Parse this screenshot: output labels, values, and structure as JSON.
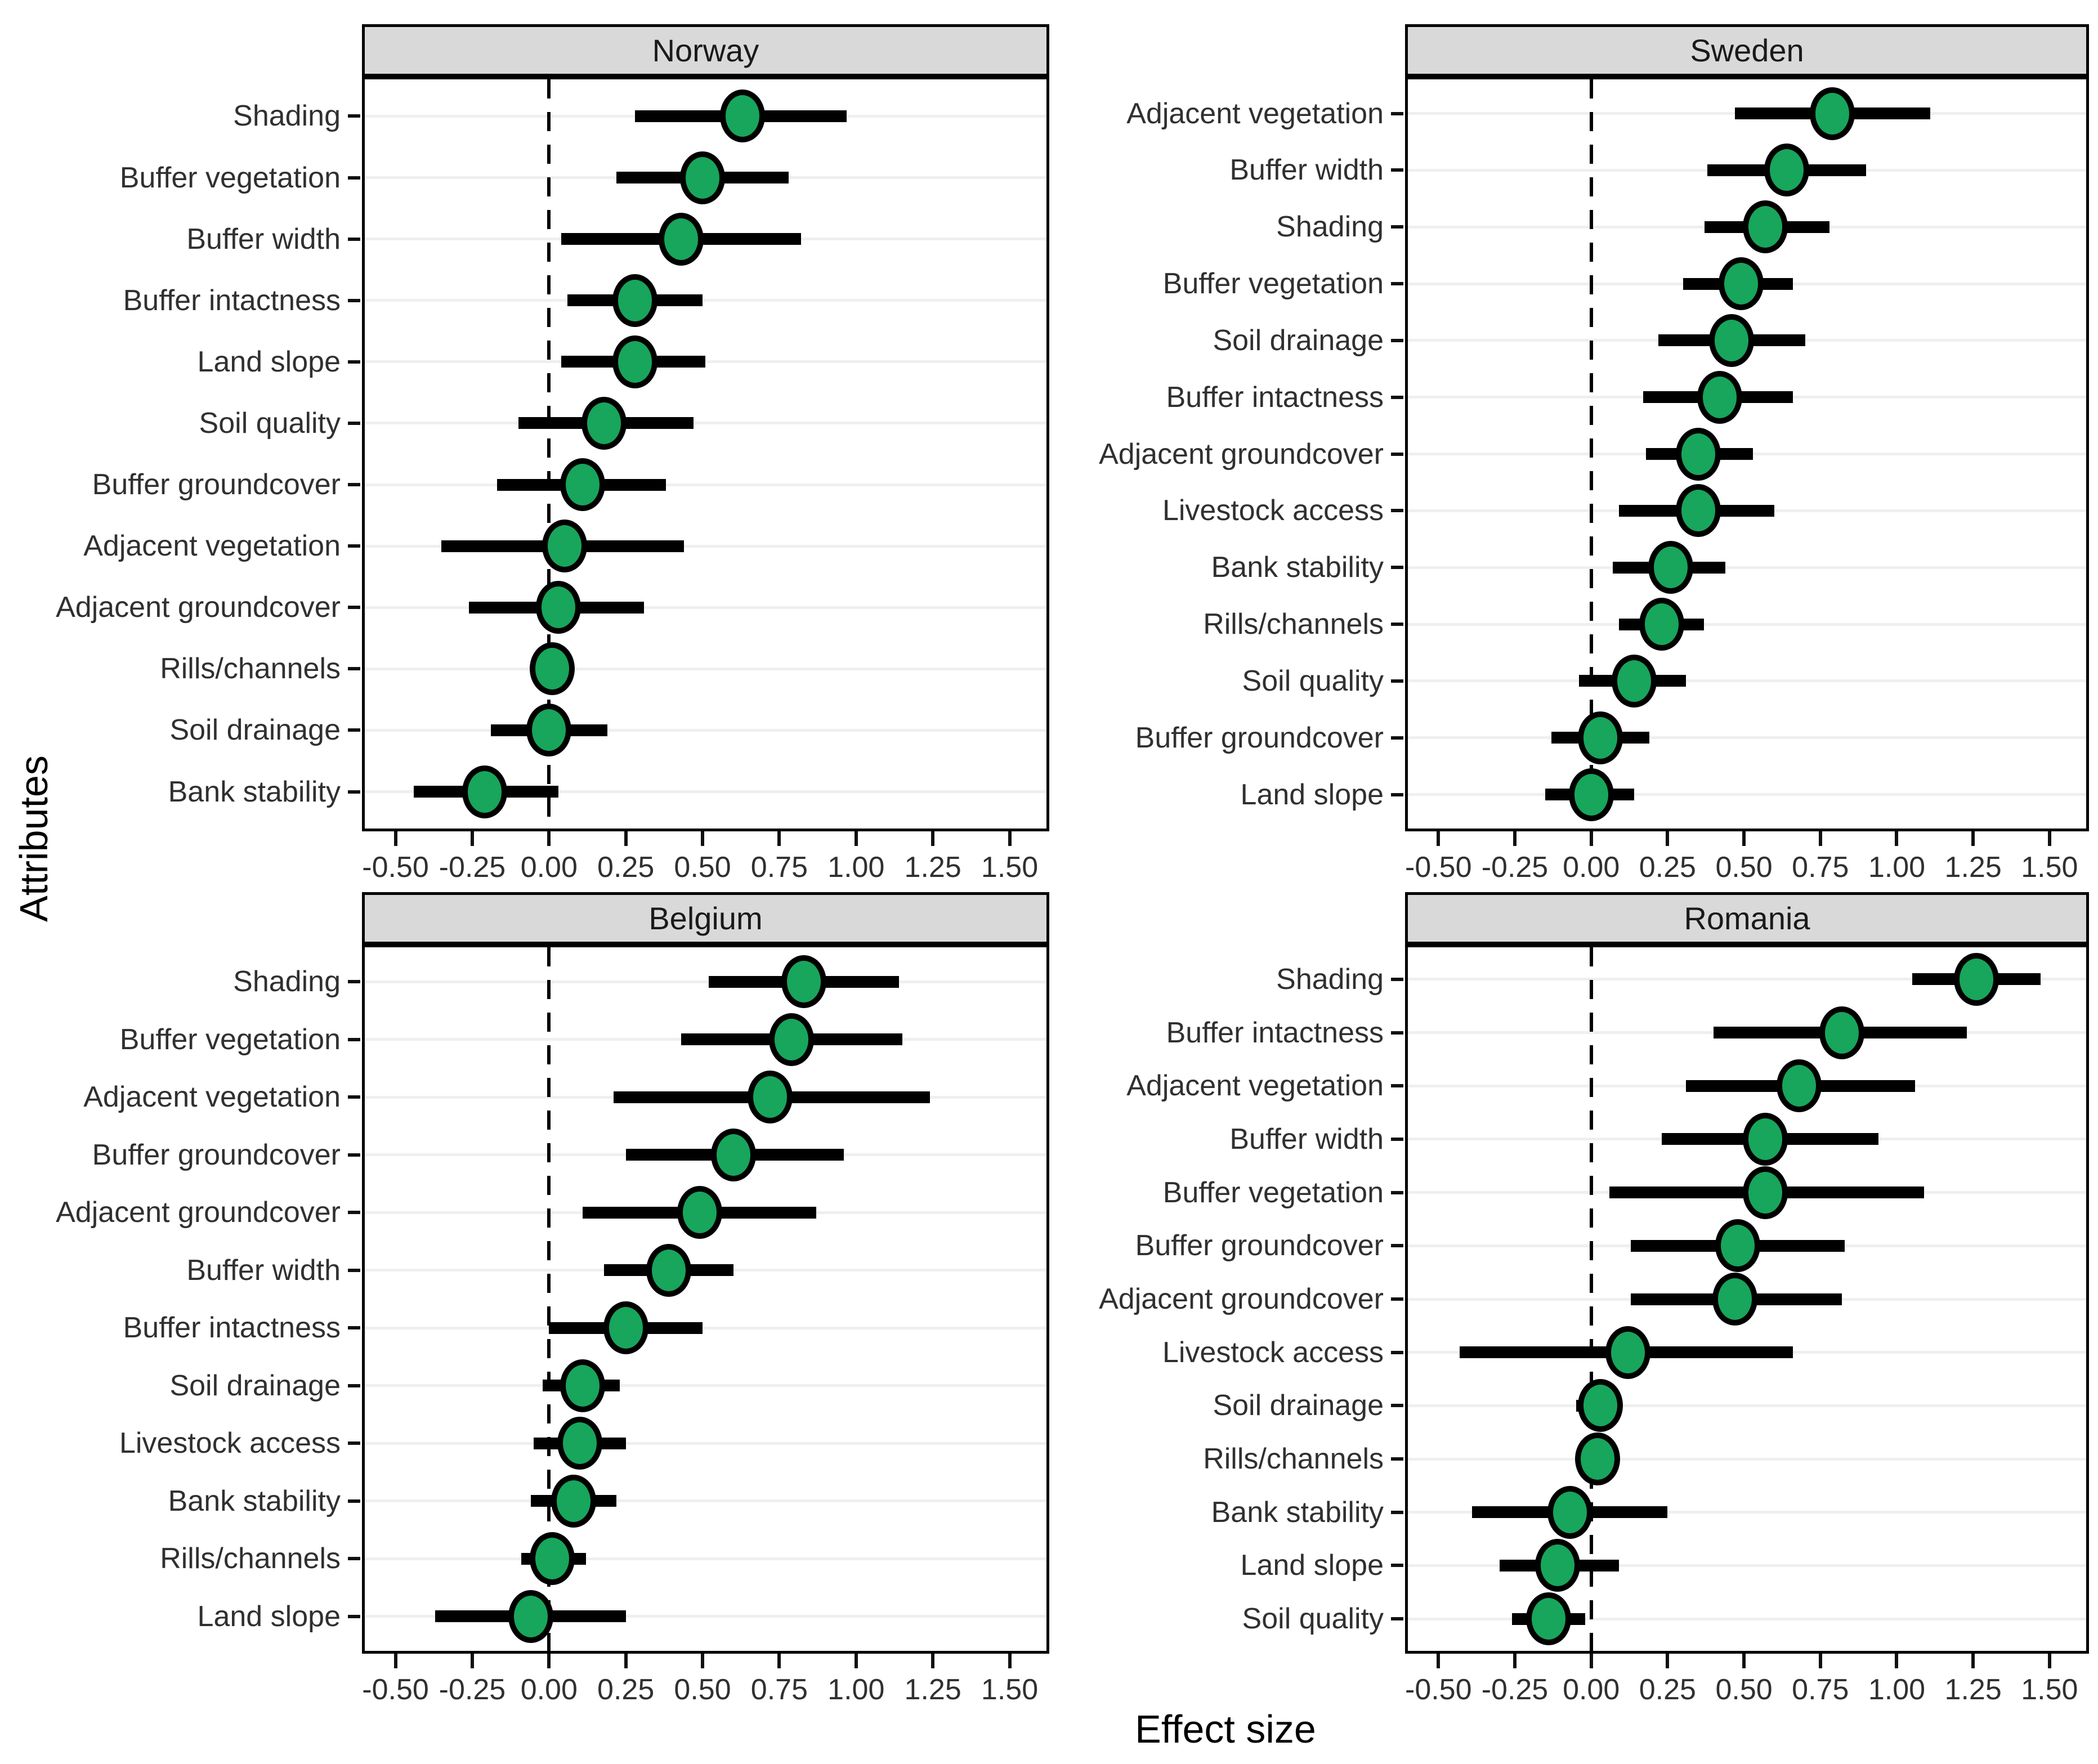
{
  "figure": {
    "x_axis_title": "Effect size",
    "y_axis_title": "Attributes",
    "colors": {
      "point_fill": "#18a55c",
      "point_stroke": "#000000",
      "whisker": "#000000",
      "zero_line": "#000000",
      "gridline": "#efefef",
      "panel_header_fill": "#d9d9d9",
      "panel_border": "#000000",
      "axis_text": "#303030"
    }
  },
  "x_axis": {
    "tick_labels": [
      "-0.50",
      "-0.25",
      "0.00",
      "0.25",
      "0.50",
      "0.75",
      "1.00",
      "1.25",
      "1.50"
    ],
    "tick_values": [
      -0.5,
      -0.25,
      0,
      0.25,
      0.5,
      0.75,
      1,
      1.25,
      1.5
    ],
    "display_range": [
      -0.6,
      1.62
    ],
    "zero_reference_line": 0
  },
  "chart_data": [
    {
      "type": "dot-whisker",
      "title": "Norway",
      "xlabel": "Effect size",
      "ylabel": "Attributes",
      "xlim": [
        -0.5,
        1.5
      ],
      "grid": "horizontal",
      "items": [
        {
          "label": "Shading",
          "value": 0.63,
          "ci_low": 0.28,
          "ci_high": 0.97
        },
        {
          "label": "Buffer vegetation",
          "value": 0.5,
          "ci_low": 0.22,
          "ci_high": 0.78
        },
        {
          "label": "Buffer width",
          "value": 0.43,
          "ci_low": 0.04,
          "ci_high": 0.82
        },
        {
          "label": "Buffer intactness",
          "value": 0.28,
          "ci_low": 0.06,
          "ci_high": 0.5
        },
        {
          "label": "Land slope",
          "value": 0.28,
          "ci_low": 0.04,
          "ci_high": 0.51
        },
        {
          "label": "Soil quality",
          "value": 0.18,
          "ci_low": -0.1,
          "ci_high": 0.47
        },
        {
          "label": "Buffer groundcover",
          "value": 0.11,
          "ci_low": -0.17,
          "ci_high": 0.38
        },
        {
          "label": "Adjacent vegetation",
          "value": 0.05,
          "ci_low": -0.35,
          "ci_high": 0.44
        },
        {
          "label": "Adjacent groundcover",
          "value": 0.03,
          "ci_low": -0.26,
          "ci_high": 0.31
        },
        {
          "label": "Rills/channels",
          "value": 0.01,
          "ci_low": -0.05,
          "ci_high": 0.07
        },
        {
          "label": "Soil drainage",
          "value": 0.0,
          "ci_low": -0.19,
          "ci_high": 0.19
        },
        {
          "label": "Bank stability",
          "value": -0.21,
          "ci_low": -0.44,
          "ci_high": 0.03
        }
      ]
    },
    {
      "type": "dot-whisker",
      "title": "Sweden",
      "xlabel": "Effect size",
      "ylabel": "Attributes",
      "xlim": [
        -0.5,
        1.5
      ],
      "grid": "horizontal",
      "items": [
        {
          "label": "Adjacent vegetation",
          "value": 0.79,
          "ci_low": 0.47,
          "ci_high": 1.11
        },
        {
          "label": "Buffer width",
          "value": 0.64,
          "ci_low": 0.38,
          "ci_high": 0.9
        },
        {
          "label": "Shading",
          "value": 0.57,
          "ci_low": 0.37,
          "ci_high": 0.78
        },
        {
          "label": "Buffer vegetation",
          "value": 0.49,
          "ci_low": 0.3,
          "ci_high": 0.66
        },
        {
          "label": "Soil drainage",
          "value": 0.46,
          "ci_low": 0.22,
          "ci_high": 0.7
        },
        {
          "label": "Buffer intactness",
          "value": 0.42,
          "ci_low": 0.17,
          "ci_high": 0.66
        },
        {
          "label": "Adjacent groundcover",
          "value": 0.35,
          "ci_low": 0.18,
          "ci_high": 0.53
        },
        {
          "label": "Livestock access",
          "value": 0.35,
          "ci_low": 0.09,
          "ci_high": 0.6
        },
        {
          "label": "Bank stability",
          "value": 0.26,
          "ci_low": 0.07,
          "ci_high": 0.44
        },
        {
          "label": "Rills/channels",
          "value": 0.23,
          "ci_low": 0.09,
          "ci_high": 0.37
        },
        {
          "label": "Soil quality",
          "value": 0.14,
          "ci_low": -0.04,
          "ci_high": 0.31
        },
        {
          "label": "Buffer groundcover",
          "value": 0.03,
          "ci_low": -0.13,
          "ci_high": 0.19
        },
        {
          "label": "Land slope",
          "value": 0.0,
          "ci_low": -0.15,
          "ci_high": 0.14
        }
      ]
    },
    {
      "type": "dot-whisker",
      "title": "Belgium",
      "xlabel": "Effect size",
      "ylabel": "Attributes",
      "xlim": [
        -0.5,
        1.5
      ],
      "grid": "horizontal",
      "items": [
        {
          "label": "Shading",
          "value": 0.83,
          "ci_low": 0.52,
          "ci_high": 1.14
        },
        {
          "label": "Buffer vegetation",
          "value": 0.79,
          "ci_low": 0.43,
          "ci_high": 1.15
        },
        {
          "label": "Adjacent vegetation",
          "value": 0.72,
          "ci_low": 0.21,
          "ci_high": 1.24
        },
        {
          "label": "Buffer groundcover",
          "value": 0.6,
          "ci_low": 0.25,
          "ci_high": 0.96
        },
        {
          "label": "Adjacent groundcover",
          "value": 0.49,
          "ci_low": 0.11,
          "ci_high": 0.87
        },
        {
          "label": "Buffer width",
          "value": 0.39,
          "ci_low": 0.18,
          "ci_high": 0.6
        },
        {
          "label": "Buffer intactness",
          "value": 0.25,
          "ci_low": 0.0,
          "ci_high": 0.5
        },
        {
          "label": "Soil drainage",
          "value": 0.11,
          "ci_low": -0.02,
          "ci_high": 0.23
        },
        {
          "label": "Livestock access",
          "value": 0.1,
          "ci_low": -0.05,
          "ci_high": 0.25
        },
        {
          "label": "Bank stability",
          "value": 0.08,
          "ci_low": -0.06,
          "ci_high": 0.22
        },
        {
          "label": "Rills/channels",
          "value": 0.01,
          "ci_low": -0.09,
          "ci_high": 0.12
        },
        {
          "label": "Land slope",
          "value": -0.06,
          "ci_low": -0.37,
          "ci_high": 0.25
        }
      ]
    },
    {
      "type": "dot-whisker",
      "title": "Romania",
      "xlabel": "Effect size",
      "ylabel": "Attributes",
      "xlim": [
        -0.5,
        1.5
      ],
      "grid": "horizontal",
      "items": [
        {
          "label": "Shading",
          "value": 1.26,
          "ci_low": 1.05,
          "ci_high": 1.47
        },
        {
          "label": "Buffer intactness",
          "value": 0.82,
          "ci_low": 0.4,
          "ci_high": 1.23
        },
        {
          "label": "Adjacent vegetation",
          "value": 0.68,
          "ci_low": 0.31,
          "ci_high": 1.06
        },
        {
          "label": "Buffer width",
          "value": 0.57,
          "ci_low": 0.23,
          "ci_high": 0.94
        },
        {
          "label": "Buffer vegetation",
          "value": 0.57,
          "ci_low": 0.06,
          "ci_high": 1.09
        },
        {
          "label": "Buffer groundcover",
          "value": 0.48,
          "ci_low": 0.13,
          "ci_high": 0.83
        },
        {
          "label": "Adjacent groundcover",
          "value": 0.47,
          "ci_low": 0.13,
          "ci_high": 0.82
        },
        {
          "label": "Livestock access",
          "value": 0.12,
          "ci_low": -0.43,
          "ci_high": 0.66
        },
        {
          "label": "Soil drainage",
          "value": 0.03,
          "ci_low": -0.05,
          "ci_high": 0.1
        },
        {
          "label": "Rills/channels",
          "value": 0.02,
          "ci_low": -0.04,
          "ci_high": 0.08
        },
        {
          "label": "Bank stability",
          "value": -0.07,
          "ci_low": -0.39,
          "ci_high": 0.25
        },
        {
          "label": "Land slope",
          "value": -0.11,
          "ci_low": -0.3,
          "ci_high": 0.09
        },
        {
          "label": "Soil quality",
          "value": -0.14,
          "ci_low": -0.26,
          "ci_high": -0.02
        }
      ]
    }
  ]
}
